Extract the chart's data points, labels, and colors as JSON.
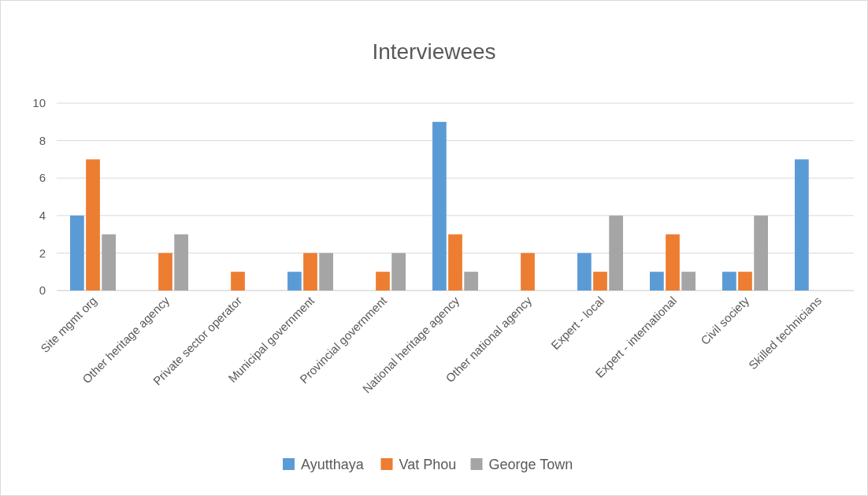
{
  "chart_data": {
    "type": "bar",
    "title": "Interviewees",
    "categories": [
      "Site mgmt org",
      "Other heritage agency",
      "Private sector operator",
      "Municipal government",
      "Provincial government",
      "National heritage agency",
      "Other national agency",
      "Expert - local",
      "Expert - international",
      "Civil society",
      "Skilled technicians"
    ],
    "series": [
      {
        "name": "Ayutthaya",
        "color": "#5b9bd5",
        "values": [
          4,
          0,
          0,
          1,
          0,
          9,
          0,
          2,
          1,
          1,
          7
        ]
      },
      {
        "name": "Vat Phou",
        "color": "#ed7d31",
        "values": [
          7,
          2,
          1,
          2,
          1,
          3,
          2,
          1,
          3,
          1,
          0
        ]
      },
      {
        "name": "George Town",
        "color": "#a5a5a5",
        "values": [
          3,
          3,
          0,
          2,
          2,
          1,
          0,
          4,
          1,
          4,
          0
        ]
      }
    ],
    "ylim": [
      0,
      10
    ],
    "yticks": [
      0,
      2,
      4,
      6,
      8,
      10
    ],
    "grid": "y",
    "legend": "bottom"
  }
}
